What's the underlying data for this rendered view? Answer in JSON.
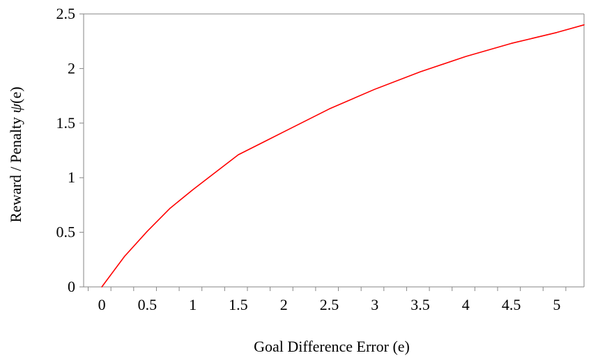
{
  "chart_data": {
    "type": "line",
    "title": "",
    "xlabel": "Goal Difference Error (e)",
    "ylabel_prefix": "Reward / Penalty ",
    "ylabel_symbol": "ψ",
    "ylabel_suffix": "(e)",
    "xlim": [
      -0.2,
      5.3
    ],
    "ylim": [
      0,
      2.5
    ],
    "x_ticks": [
      0,
      0.5,
      1,
      1.5,
      2,
      2.5,
      3,
      3.5,
      4,
      4.5,
      5
    ],
    "x_tick_labels": [
      "0",
      "0.5",
      "1",
      "1.5",
      "2",
      "2.5",
      "3",
      "3.5",
      "4",
      "4.5",
      "5"
    ],
    "y_ticks": [
      0,
      0.5,
      1,
      1.5,
      2,
      2.5
    ],
    "y_tick_labels": [
      "0",
      "0.5",
      "1",
      "1.5",
      "2",
      "2.5"
    ],
    "grid": false,
    "legend": "none",
    "series": [
      {
        "color": "#ff0000",
        "x": [
          0,
          0.25,
          0.5,
          0.75,
          1,
          1.5,
          2,
          2.5,
          3,
          3.5,
          4,
          4.5,
          5,
          5.3
        ],
        "y": [
          0,
          0.28,
          0.51,
          0.72,
          0.89,
          1.21,
          1.42,
          1.63,
          1.81,
          1.97,
          2.11,
          2.23,
          2.33,
          2.4
        ]
      }
    ]
  }
}
